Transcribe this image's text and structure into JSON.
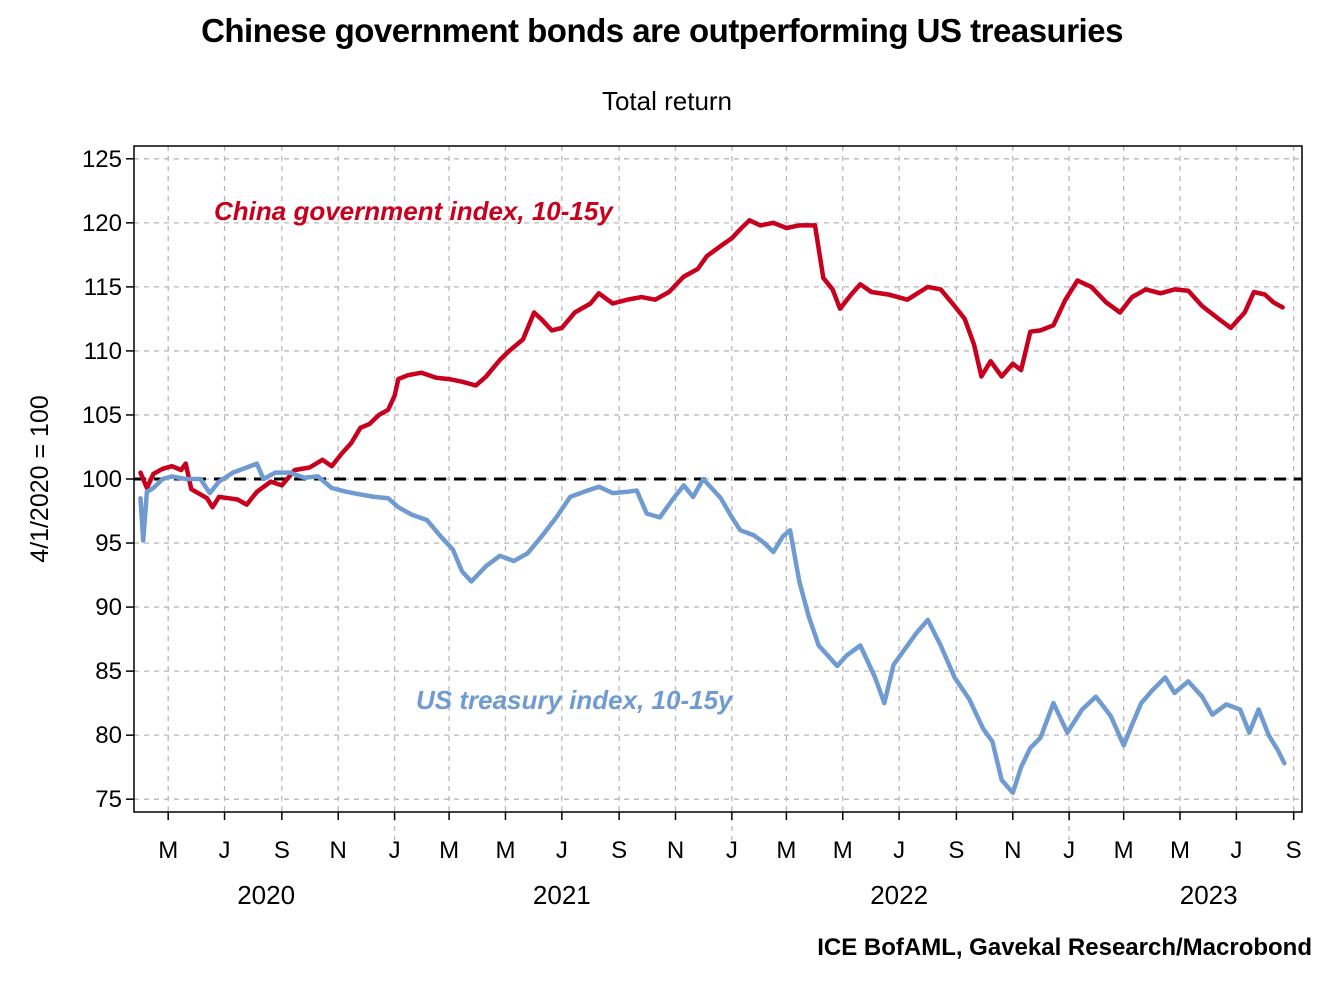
{
  "chart_data": {
    "type": "line",
    "title": "Chinese government bonds are outperforming US treasuries",
    "subtitle": "Total return",
    "ylabel": "4/1/2020 = 100",
    "source": "ICE BofAML, Gavekal Research/Macrobond",
    "ylim": [
      74,
      126
    ],
    "yticks": [
      75,
      80,
      85,
      90,
      95,
      100,
      105,
      110,
      115,
      120,
      125
    ],
    "xlim": [
      "2020-03-25",
      "2023-09-10"
    ],
    "grid": true,
    "reference_line": 100,
    "x_month_ticks": [
      {
        "date": "2020-05-01",
        "label": "M"
      },
      {
        "date": "2020-07-01",
        "label": "J"
      },
      {
        "date": "2020-09-01",
        "label": "S"
      },
      {
        "date": "2020-11-01",
        "label": "N"
      },
      {
        "date": "2021-01-01",
        "label": "J"
      },
      {
        "date": "2021-03-01",
        "label": "M"
      },
      {
        "date": "2021-05-01",
        "label": "M"
      },
      {
        "date": "2021-07-01",
        "label": "J"
      },
      {
        "date": "2021-09-01",
        "label": "S"
      },
      {
        "date": "2021-11-01",
        "label": "N"
      },
      {
        "date": "2022-01-01",
        "label": "J"
      },
      {
        "date": "2022-03-01",
        "label": "M"
      },
      {
        "date": "2022-05-01",
        "label": "M"
      },
      {
        "date": "2022-07-01",
        "label": "J"
      },
      {
        "date": "2022-09-01",
        "label": "S"
      },
      {
        "date": "2022-11-01",
        "label": "N"
      },
      {
        "date": "2023-01-01",
        "label": "J"
      },
      {
        "date": "2023-03-01",
        "label": "M"
      },
      {
        "date": "2023-05-01",
        "label": "M"
      },
      {
        "date": "2023-07-01",
        "label": "J"
      },
      {
        "date": "2023-09-01",
        "label": "S"
      }
    ],
    "x_year_labels": [
      {
        "label": "2020",
        "date": "2020-08-15"
      },
      {
        "label": "2021",
        "date": "2021-07-01"
      },
      {
        "label": "2022",
        "date": "2022-07-01"
      },
      {
        "label": "2023",
        "date": "2023-06-01"
      }
    ],
    "series": [
      {
        "name": "China government index, 10-15y",
        "color": "#c8001e",
        "points": [
          [
            "2020-04-01",
            100.5
          ],
          [
            "2020-04-08",
            99.3
          ],
          [
            "2020-04-15",
            100.4
          ],
          [
            "2020-04-25",
            100.8
          ],
          [
            "2020-05-05",
            101.0
          ],
          [
            "2020-05-15",
            100.7
          ],
          [
            "2020-05-20",
            101.2
          ],
          [
            "2020-05-26",
            99.2
          ],
          [
            "2020-06-05",
            98.8
          ],
          [
            "2020-06-12",
            98.5
          ],
          [
            "2020-06-18",
            97.8
          ],
          [
            "2020-06-25",
            98.6
          ],
          [
            "2020-07-05",
            98.5
          ],
          [
            "2020-07-15",
            98.4
          ],
          [
            "2020-07-25",
            98.0
          ],
          [
            "2020-08-05",
            99.0
          ],
          [
            "2020-08-20",
            99.8
          ],
          [
            "2020-09-01",
            99.5
          ],
          [
            "2020-09-15",
            100.7
          ],
          [
            "2020-10-01",
            100.9
          ],
          [
            "2020-10-15",
            101.5
          ],
          [
            "2020-10-25",
            101.0
          ],
          [
            "2020-11-05",
            102.0
          ],
          [
            "2020-11-15",
            102.8
          ],
          [
            "2020-11-25",
            104.0
          ],
          [
            "2020-12-05",
            104.3
          ],
          [
            "2020-12-15",
            105.0
          ],
          [
            "2020-12-25",
            105.4
          ],
          [
            "2021-01-01",
            106.5
          ],
          [
            "2021-01-05",
            107.8
          ],
          [
            "2021-01-15",
            108.1
          ],
          [
            "2021-01-30",
            108.3
          ],
          [
            "2021-02-15",
            107.9
          ],
          [
            "2021-03-01",
            107.8
          ],
          [
            "2021-03-15",
            107.6
          ],
          [
            "2021-03-30",
            107.3
          ],
          [
            "2021-04-10",
            108.0
          ],
          [
            "2021-04-25",
            109.3
          ],
          [
            "2021-05-05",
            110.0
          ],
          [
            "2021-05-20",
            110.9
          ],
          [
            "2021-06-01",
            113.0
          ],
          [
            "2021-06-10",
            112.4
          ],
          [
            "2021-06-20",
            111.6
          ],
          [
            "2021-07-01",
            111.8
          ],
          [
            "2021-07-15",
            113.0
          ],
          [
            "2021-08-01",
            113.7
          ],
          [
            "2021-08-10",
            114.5
          ],
          [
            "2021-08-25",
            113.7
          ],
          [
            "2021-09-10",
            114.0
          ],
          [
            "2021-09-25",
            114.2
          ],
          [
            "2021-10-10",
            114.0
          ],
          [
            "2021-10-25",
            114.6
          ],
          [
            "2021-11-10",
            115.8
          ],
          [
            "2021-11-25",
            116.4
          ],
          [
            "2021-12-05",
            117.4
          ],
          [
            "2021-12-20",
            118.2
          ],
          [
            "2022-01-01",
            118.8
          ],
          [
            "2022-01-10",
            119.5
          ],
          [
            "2022-01-20",
            120.2
          ],
          [
            "2022-02-01",
            119.8
          ],
          [
            "2022-02-15",
            120.0
          ],
          [
            "2022-03-01",
            119.6
          ],
          [
            "2022-03-15",
            119.8
          ],
          [
            "2022-04-01",
            119.8
          ],
          [
            "2022-04-10",
            115.7
          ],
          [
            "2022-04-20",
            114.8
          ],
          [
            "2022-04-28",
            113.3
          ],
          [
            "2022-05-10",
            114.4
          ],
          [
            "2022-05-20",
            115.2
          ],
          [
            "2022-06-01",
            114.6
          ],
          [
            "2022-06-20",
            114.4
          ],
          [
            "2022-07-10",
            114.0
          ],
          [
            "2022-08-01",
            115.0
          ],
          [
            "2022-08-15",
            114.8
          ],
          [
            "2022-08-30",
            113.5
          ],
          [
            "2022-09-10",
            112.5
          ],
          [
            "2022-09-20",
            110.5
          ],
          [
            "2022-09-28",
            108.0
          ],
          [
            "2022-10-08",
            109.2
          ],
          [
            "2022-10-20",
            108.0
          ],
          [
            "2022-11-01",
            109.0
          ],
          [
            "2022-11-10",
            108.5
          ],
          [
            "2022-11-20",
            111.5
          ],
          [
            "2022-12-01",
            111.6
          ],
          [
            "2022-12-15",
            112.0
          ],
          [
            "2022-12-28",
            114.0
          ],
          [
            "2023-01-10",
            115.5
          ],
          [
            "2023-01-25",
            115.0
          ],
          [
            "2023-02-10",
            113.8
          ],
          [
            "2023-02-25",
            113.0
          ],
          [
            "2023-03-10",
            114.2
          ],
          [
            "2023-03-25",
            114.8
          ],
          [
            "2023-04-10",
            114.5
          ],
          [
            "2023-04-25",
            114.8
          ],
          [
            "2023-05-10",
            114.7
          ],
          [
            "2023-05-25",
            113.5
          ],
          [
            "2023-06-10",
            112.6
          ],
          [
            "2023-06-25",
            111.8
          ],
          [
            "2023-07-10",
            113.0
          ],
          [
            "2023-07-20",
            114.6
          ],
          [
            "2023-08-01",
            114.4
          ],
          [
            "2023-08-10",
            113.8
          ],
          [
            "2023-08-20",
            113.4
          ]
        ]
      },
      {
        "name": "US treasury index, 10-15y",
        "color": "#6f9bd1",
        "points": [
          [
            "2020-04-01",
            98.5
          ],
          [
            "2020-04-04",
            95.2
          ],
          [
            "2020-04-08",
            99.0
          ],
          [
            "2020-04-15",
            99.3
          ],
          [
            "2020-04-25",
            100.0
          ],
          [
            "2020-05-05",
            100.2
          ],
          [
            "2020-05-20",
            100.0
          ],
          [
            "2020-06-05",
            100.0
          ],
          [
            "2020-06-15",
            98.9
          ],
          [
            "2020-06-25",
            99.8
          ],
          [
            "2020-07-10",
            100.5
          ],
          [
            "2020-07-25",
            100.9
          ],
          [
            "2020-08-05",
            101.2
          ],
          [
            "2020-08-12",
            100.0
          ],
          [
            "2020-08-25",
            100.5
          ],
          [
            "2020-09-10",
            100.5
          ],
          [
            "2020-09-25",
            100.1
          ],
          [
            "2020-10-10",
            100.2
          ],
          [
            "2020-10-25",
            99.3
          ],
          [
            "2020-11-10",
            99.0
          ],
          [
            "2020-11-25",
            98.8
          ],
          [
            "2020-12-10",
            98.6
          ],
          [
            "2020-12-25",
            98.5
          ],
          [
            "2021-01-05",
            97.8
          ],
          [
            "2021-01-20",
            97.2
          ],
          [
            "2021-02-05",
            96.8
          ],
          [
            "2021-02-20",
            95.5
          ],
          [
            "2021-03-05",
            94.5
          ],
          [
            "2021-03-15",
            92.8
          ],
          [
            "2021-03-25",
            92.0
          ],
          [
            "2021-04-10",
            93.2
          ],
          [
            "2021-04-25",
            94.0
          ],
          [
            "2021-05-10",
            93.6
          ],
          [
            "2021-05-25",
            94.2
          ],
          [
            "2021-06-10",
            95.6
          ],
          [
            "2021-06-25",
            97.0
          ],
          [
            "2021-07-10",
            98.6
          ],
          [
            "2021-07-25",
            99.0
          ],
          [
            "2021-08-10",
            99.4
          ],
          [
            "2021-08-25",
            98.9
          ],
          [
            "2021-09-10",
            99.0
          ],
          [
            "2021-09-20",
            99.1
          ],
          [
            "2021-10-01",
            97.3
          ],
          [
            "2021-10-15",
            97.0
          ],
          [
            "2021-10-30",
            98.5
          ],
          [
            "2021-11-10",
            99.5
          ],
          [
            "2021-11-20",
            98.6
          ],
          [
            "2021-12-01",
            100.0
          ],
          [
            "2021-12-10",
            99.3
          ],
          [
            "2021-12-20",
            98.5
          ],
          [
            "2022-01-01",
            97.0
          ],
          [
            "2022-01-10",
            96.0
          ],
          [
            "2022-01-25",
            95.6
          ],
          [
            "2022-02-05",
            95.0
          ],
          [
            "2022-02-15",
            94.3
          ],
          [
            "2022-02-25",
            95.5
          ],
          [
            "2022-03-05",
            96.0
          ],
          [
            "2022-03-15",
            92.0
          ],
          [
            "2022-03-25",
            89.3
          ],
          [
            "2022-04-05",
            87.0
          ],
          [
            "2022-04-15",
            86.2
          ],
          [
            "2022-04-25",
            85.4
          ],
          [
            "2022-05-05",
            86.2
          ],
          [
            "2022-05-20",
            87.0
          ],
          [
            "2022-06-05",
            84.5
          ],
          [
            "2022-06-15",
            82.5
          ],
          [
            "2022-06-25",
            85.5
          ],
          [
            "2022-07-05",
            86.5
          ],
          [
            "2022-07-20",
            88.0
          ],
          [
            "2022-08-01",
            89.0
          ],
          [
            "2022-08-15",
            87.0
          ],
          [
            "2022-08-30",
            84.5
          ],
          [
            "2022-09-15",
            82.8
          ],
          [
            "2022-09-30",
            80.5
          ],
          [
            "2022-10-10",
            79.5
          ],
          [
            "2022-10-20",
            76.5
          ],
          [
            "2022-11-01",
            75.5
          ],
          [
            "2022-11-10",
            77.5
          ],
          [
            "2022-11-20",
            79.0
          ],
          [
            "2022-12-01",
            79.8
          ],
          [
            "2022-12-15",
            82.5
          ],
          [
            "2022-12-30",
            80.2
          ],
          [
            "2023-01-15",
            82.0
          ],
          [
            "2023-01-30",
            83.0
          ],
          [
            "2023-02-15",
            81.5
          ],
          [
            "2023-03-01",
            79.2
          ],
          [
            "2023-03-10",
            80.8
          ],
          [
            "2023-03-20",
            82.5
          ],
          [
            "2023-04-01",
            83.5
          ],
          [
            "2023-04-15",
            84.5
          ],
          [
            "2023-04-25",
            83.3
          ],
          [
            "2023-05-10",
            84.2
          ],
          [
            "2023-05-25",
            83.0
          ],
          [
            "2023-06-05",
            81.6
          ],
          [
            "2023-06-20",
            82.4
          ],
          [
            "2023-07-05",
            82.0
          ],
          [
            "2023-07-15",
            80.2
          ],
          [
            "2023-07-25",
            82.0
          ],
          [
            "2023-08-05",
            80.0
          ],
          [
            "2023-08-15",
            78.8
          ],
          [
            "2023-08-22",
            77.8
          ]
        ]
      }
    ]
  }
}
